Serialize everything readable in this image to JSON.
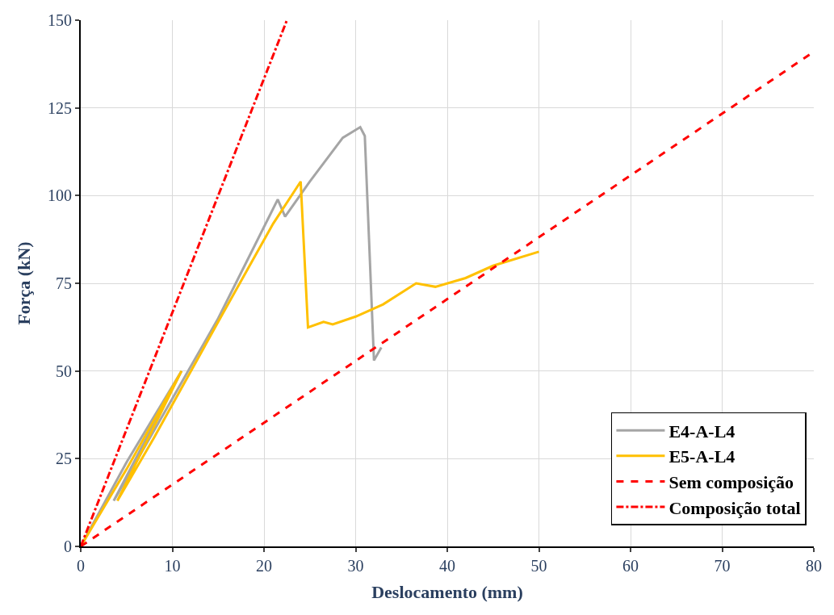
{
  "chart_data": {
    "type": "line",
    "xlabel": "Deslocamento (mm)",
    "ylabel": "Força (kN)",
    "xlim": [
      0,
      80
    ],
    "xticks": [
      0,
      10,
      20,
      30,
      40,
      50,
      60,
      70,
      80
    ],
    "ylim": [
      0,
      150
    ],
    "yticks": [
      0,
      25,
      50,
      75,
      100,
      125,
      150
    ],
    "grid": true,
    "legend": "bottom right",
    "marker": "none",
    "series": [
      {
        "name": "E4-A-L4",
        "color": "#a5a5a5",
        "line_style": "solid",
        "x": [
          0,
          5,
          11,
          3.6,
          8,
          15,
          21.5,
          22.3,
          25,
          28.6,
          30.5,
          31,
          32,
          32.8
        ],
        "values": [
          0,
          24,
          50,
          13,
          33,
          65,
          98.9,
          94,
          104,
          116.5,
          119.5,
          117,
          53,
          56.7
        ]
      },
      {
        "name": "E5-A-L4",
        "color": "#ffc000",
        "line_style": "solid",
        "x": [
          0,
          5,
          11,
          4,
          8,
          15,
          21,
          24,
          24.8,
          26.5,
          27.5,
          30,
          33,
          36.6,
          38.7,
          42,
          45,
          50
        ],
        "values": [
          0,
          22,
          50,
          13,
          31,
          64,
          92,
          104,
          62.4,
          64,
          63.3,
          65.5,
          69,
          75,
          74,
          76.5,
          80,
          84
        ]
      },
      {
        "name": "Sem composição",
        "color": "#ff0000",
        "line_style": "dashed",
        "x": [
          0,
          80
        ],
        "values": [
          0,
          141
        ]
      },
      {
        "name": "Composição total",
        "color": "#ff0000",
        "line_style": "dashdot",
        "x": [
          0,
          22.5
        ],
        "values": [
          0,
          150
        ]
      }
    ]
  }
}
